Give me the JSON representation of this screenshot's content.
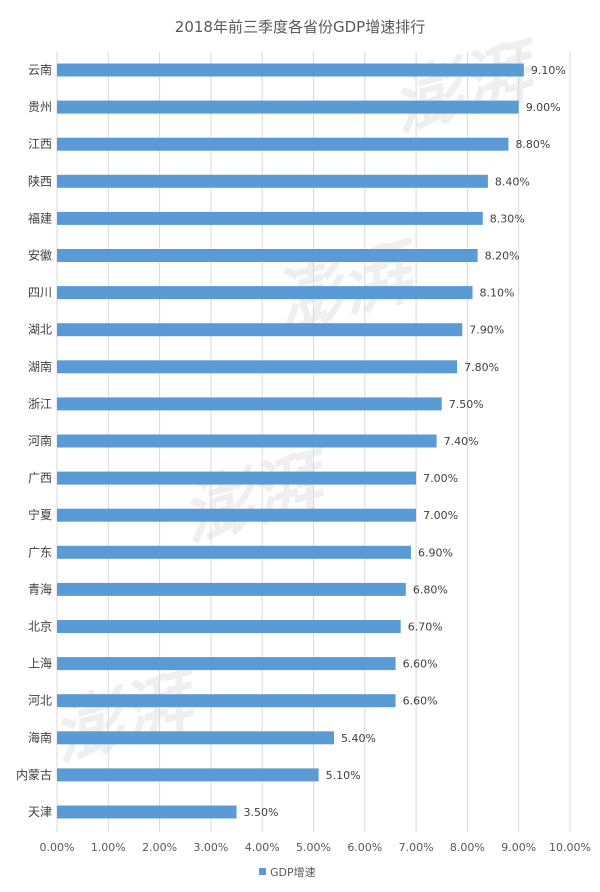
{
  "chart_data": {
    "type": "bar",
    "orientation": "horizontal",
    "title": "2018年前三季度各省份GDP增速排行",
    "categories": [
      "云南",
      "贵州",
      "江西",
      "陕西",
      "福建",
      "安徽",
      "四川",
      "湖北",
      "湖南",
      "浙江",
      "河南",
      "广西",
      "宁夏",
      "广东",
      "青海",
      "北京",
      "上海",
      "河北",
      "海南",
      "内蒙古",
      "天津"
    ],
    "values": [
      9.1,
      9.0,
      8.8,
      8.4,
      8.3,
      8.2,
      8.1,
      7.9,
      7.8,
      7.5,
      7.4,
      7.0,
      7.0,
      6.9,
      6.8,
      6.7,
      6.6,
      6.6,
      5.4,
      5.1,
      3.5
    ],
    "value_labels": [
      "9.10%",
      "9.00%",
      "8.80%",
      "8.40%",
      "8.30%",
      "8.20%",
      "8.10%",
      "7.90%",
      "7.80%",
      "7.50%",
      "7.40%",
      "7.00%",
      "7.00%",
      "6.90%",
      "6.80%",
      "6.70%",
      "6.60%",
      "6.60%",
      "5.40%",
      "5.10%",
      "3.50%"
    ],
    "xlim": [
      0,
      10
    ],
    "xticks": [
      "0.00%",
      "1.00%",
      "2.00%",
      "3.00%",
      "4.00%",
      "5.00%",
      "6.00%",
      "7.00%",
      "8.00%",
      "9.00%",
      "10.00%"
    ],
    "grid": true,
    "legend": {
      "position": "bottom",
      "entries": [
        "GDP增速"
      ]
    },
    "colors": {
      "bar": "#5b9bd5",
      "grid": "#d9d9d9"
    }
  }
}
